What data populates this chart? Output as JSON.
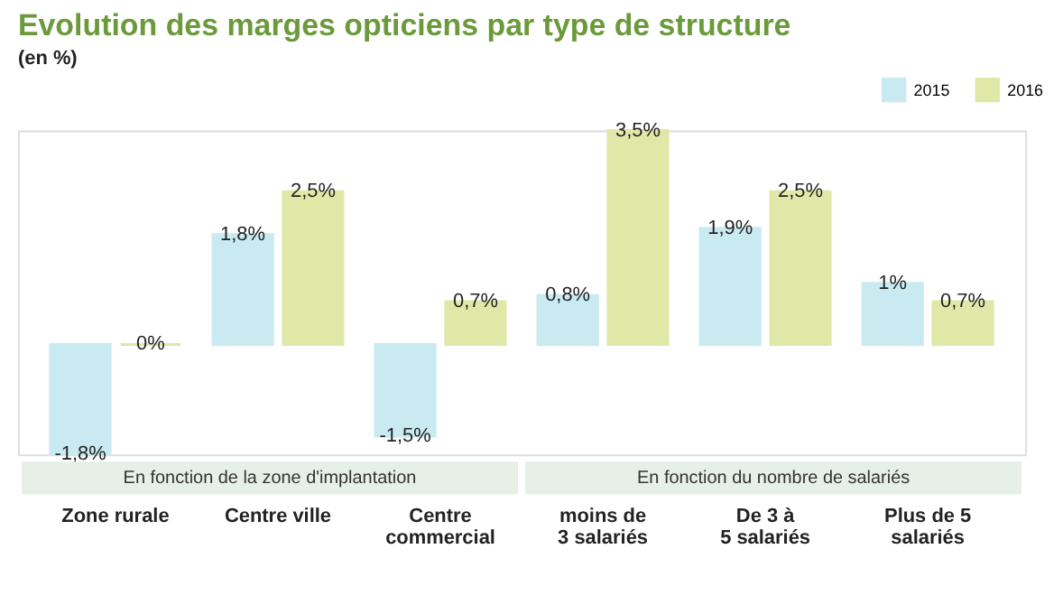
{
  "chart_data": {
    "type": "bar",
    "title": "Evolution des marges opticiens par type de structure",
    "subtitle": "(en %)",
    "categories": [
      "Zone rurale",
      "Centre ville",
      "Centre\ncommercial",
      "moins de\n3 salariés",
      "De 3 à\n5 salariés",
      "Plus de 5\nsalariés"
    ],
    "series": [
      {
        "name": "2015",
        "color": "#c8eaf0",
        "values": [
          -1.8,
          1.8,
          -1.5,
          0.8,
          1.9,
          1
        ],
        "value_labels": [
          "-1,8%",
          "1,8%",
          "-1,5%",
          "0,8%",
          "1,9%",
          "1%"
        ]
      },
      {
        "name": "2016",
        "color": "#e0e8a8",
        "values": [
          0,
          2.5,
          0.7,
          3.5,
          2.5,
          0.7
        ],
        "value_labels": [
          "0%",
          "2,5%",
          "0,7%",
          "3,5%",
          "2,5%",
          "0,7%"
        ]
      }
    ],
    "annotations": [
      "En fonction de la zone d'implantation",
      "En fonction du nombre de salariés"
    ],
    "legend": "top right",
    "grid": false
  }
}
